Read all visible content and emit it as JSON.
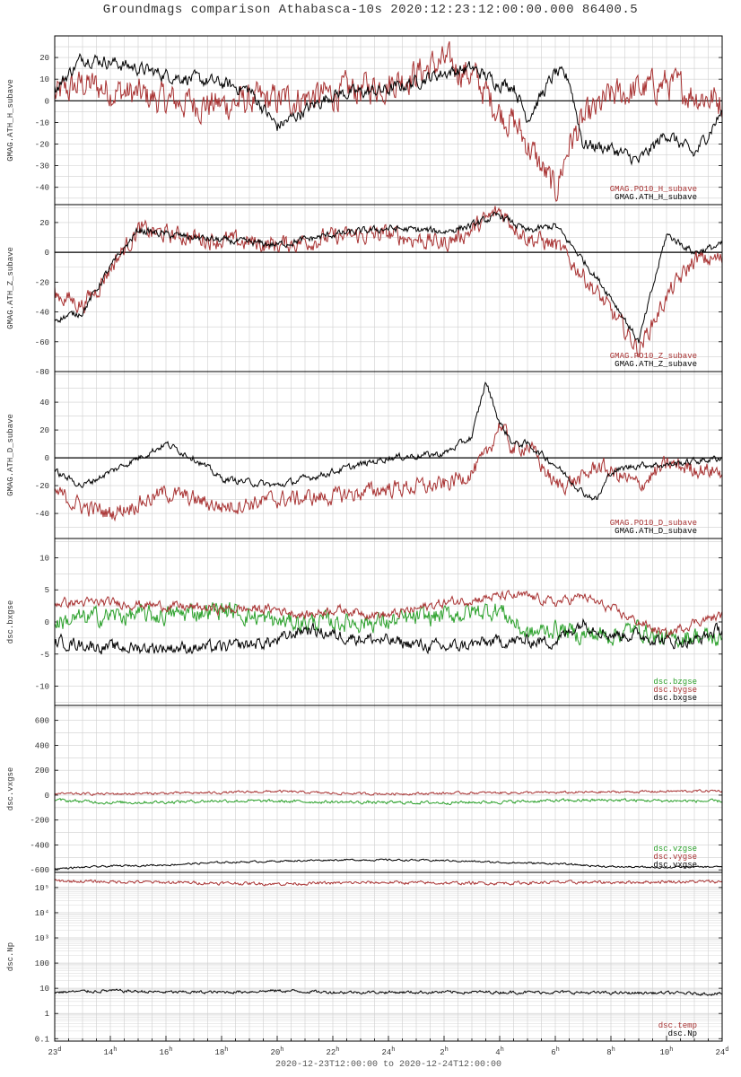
{
  "title": "Groundmags comparison Athabasca-10s 2020:12:23:12:00:00.000 86400.5",
  "footer": "2020-12-23T12:00:00 to 2020-12-24T12:00:00",
  "colors": {
    "black": "#000000",
    "red": "#a83232",
    "green": "#2aa02a",
    "grid": "#cfcfcf"
  },
  "x_ticks": [
    {
      "main": "23",
      "sup": "d"
    },
    {
      "main": "14",
      "sup": "h"
    },
    {
      "main": "16",
      "sup": "h"
    },
    {
      "main": "18",
      "sup": "h"
    },
    {
      "main": "20",
      "sup": "h"
    },
    {
      "main": "22",
      "sup": "h"
    },
    {
      "main": "24",
      "sup": "h"
    },
    {
      "main": "2",
      "sup": "h"
    },
    {
      "main": "4",
      "sup": "h"
    },
    {
      "main": "6",
      "sup": "h"
    },
    {
      "main": "8",
      "sup": "h"
    },
    {
      "main": "10",
      "sup": "h"
    },
    {
      "main": "24",
      "sup": "d"
    }
  ],
  "chart_data": [
    {
      "type": "line",
      "ylabel": "GMAG.ATH_H_subave",
      "ylim": [
        -48,
        30
      ],
      "log": false,
      "yticks": [
        "20",
        "10",
        "0",
        "-10",
        "-20",
        "-30",
        "-40"
      ],
      "ytick_values": [
        20,
        10,
        0,
        -10,
        -20,
        -30,
        -40
      ],
      "zero_line": true,
      "x_hours": [
        0,
        1,
        2,
        4,
        6,
        7,
        8,
        10,
        12,
        14,
        15,
        16,
        16.5,
        17,
        18,
        18.5,
        19,
        20,
        21,
        22,
        23,
        24
      ],
      "series": [
        {
          "name": "GMAG.ATH_H_subave",
          "color": "black",
          "noise": 2.5,
          "values": [
            5,
            20,
            18,
            12,
            8,
            5,
            -12,
            3,
            5,
            13,
            15,
            8,
            7,
            -8,
            13,
            10,
            -20,
            -22,
            -28,
            -15,
            -25,
            -5
          ]
        },
        {
          "name": "GMAG.PO10_H_subave",
          "color": "red",
          "noise": 6,
          "values": [
            2,
            8,
            5,
            0,
            -2,
            0,
            0,
            3,
            8,
            18,
            12,
            -5,
            -10,
            -20,
            -42,
            -20,
            -10,
            2,
            5,
            8,
            3,
            0
          ]
        }
      ]
    },
    {
      "type": "line",
      "ylabel": "GMAG.ATH_Z_subave",
      "ylim": [
        -80,
        32
      ],
      "log": false,
      "yticks": [
        "20",
        "0",
        "-20",
        "-40",
        "-60",
        "-80"
      ],
      "ytick_values": [
        20,
        0,
        -20,
        -40,
        -60,
        -80
      ],
      "zero_line": true,
      "x_hours": [
        0,
        1,
        1.5,
        2,
        3,
        4,
        6,
        8,
        10,
        12,
        14,
        15,
        16,
        17,
        18,
        19,
        20,
        21,
        22,
        23,
        24
      ],
      "series": [
        {
          "name": "GMAG.ATH_Z_subave",
          "color": "black",
          "noise": 2,
          "values": [
            -45,
            -40,
            -25,
            -10,
            15,
            12,
            8,
            5,
            12,
            16,
            14,
            18,
            25,
            14,
            18,
            -5,
            -30,
            -60,
            12,
            0,
            5
          ]
        },
        {
          "name": "GMAG.PO10_Z_subave",
          "color": "red",
          "noise": 5,
          "values": [
            -28,
            -35,
            -25,
            -10,
            15,
            12,
            8,
            5,
            10,
            12,
            6,
            15,
            28,
            10,
            5,
            -15,
            -40,
            -65,
            -30,
            -5,
            -5
          ]
        }
      ]
    },
    {
      "type": "line",
      "ylabel": "GMAG.ATH_D_subave",
      "ylim": [
        -58,
        62
      ],
      "log": false,
      "yticks": [
        "40",
        "20",
        "0",
        "-20",
        "-40"
      ],
      "ytick_values": [
        40,
        20,
        0,
        -20,
        -40
      ],
      "zero_line": true,
      "x_hours": [
        0,
        1,
        2,
        4,
        5,
        6,
        8,
        10,
        12,
        14,
        15,
        15.5,
        16,
        16.5,
        17,
        18,
        19,
        19.5,
        20,
        21,
        22,
        24
      ],
      "series": [
        {
          "name": "GMAG.ATH_D_subave",
          "color": "black",
          "noise": 2,
          "values": [
            -10,
            -20,
            -10,
            10,
            0,
            -15,
            -20,
            -10,
            0,
            3,
            15,
            55,
            25,
            10,
            10,
            -5,
            -25,
            -30,
            -10,
            -5,
            -5,
            0
          ]
        },
        {
          "name": "GMAG.PO10_D_subave",
          "color": "red",
          "noise": 5,
          "values": [
            -25,
            -35,
            -40,
            -25,
            -30,
            -35,
            -30,
            -28,
            -22,
            -20,
            -10,
            0,
            25,
            5,
            10,
            -20,
            -15,
            -5,
            -10,
            -20,
            -5,
            -10
          ]
        }
      ]
    },
    {
      "type": "line",
      "ylabel": "dsc.bxgse",
      "ylim": [
        -13,
        13
      ],
      "log": false,
      "yticks": [
        "10",
        "5",
        "0",
        "-5",
        "-10"
      ],
      "ytick_values": [
        10,
        5,
        0,
        -5,
        -10
      ],
      "zero_line": false,
      "x_hours": [
        0,
        2,
        4,
        6,
        8,
        9,
        10,
        12,
        14,
        16,
        17,
        18,
        19,
        20,
        21,
        22,
        23,
        24
      ],
      "series": [
        {
          "name": "dsc.bxgse",
          "color": "black",
          "noise": 0.8,
          "values": [
            -3,
            -4,
            -4,
            -4,
            -3,
            -1,
            -2,
            -3,
            -4,
            -3,
            -3,
            -3,
            0,
            -2,
            -2,
            -3,
            -3,
            -1
          ]
        },
        {
          "name": "dsc.bygse",
          "color": "red",
          "noise": 0.6,
          "values": [
            3,
            3,
            2.5,
            2,
            2,
            1,
            2,
            1,
            3,
            4,
            4,
            3,
            4,
            2,
            0,
            -2,
            0,
            1
          ]
        },
        {
          "name": "dsc.bzgse",
          "color": "green",
          "noise": 1.2,
          "values": [
            0,
            1,
            1,
            2,
            0,
            0,
            0,
            0,
            1,
            2,
            -2,
            -1,
            -2,
            -2,
            -1,
            -3,
            -2,
            -3
          ]
        }
      ]
    },
    {
      "type": "line",
      "ylabel": "dsc.vxgse",
      "ylim": [
        -620,
        720
      ],
      "log": false,
      "yticks": [
        "600",
        "400",
        "200",
        "0",
        "-200",
        "-400",
        "-600"
      ],
      "ytick_values": [
        600,
        400,
        200,
        0,
        -200,
        -400,
        -600
      ],
      "zero_line": false,
      "x_hours": [
        0,
        2,
        4,
        6,
        8,
        10,
        12,
        14,
        16,
        18,
        20,
        22,
        24
      ],
      "series": [
        {
          "name": "dsc.vxgse",
          "color": "black",
          "noise": 6,
          "values": [
            -590,
            -570,
            -560,
            -540,
            -530,
            -520,
            -520,
            -525,
            -540,
            -550,
            -575,
            -580,
            -575
          ]
        },
        {
          "name": "dsc.vygse",
          "color": "red",
          "noise": 8,
          "values": [
            10,
            10,
            15,
            20,
            30,
            15,
            10,
            15,
            20,
            20,
            25,
            30,
            35
          ]
        },
        {
          "name": "dsc.vzgse",
          "color": "green",
          "noise": 10,
          "values": [
            -40,
            -60,
            -55,
            -45,
            -50,
            -55,
            -60,
            -60,
            -55,
            -45,
            -40,
            -45,
            -50
          ]
        }
      ]
    },
    {
      "type": "line",
      "ylabel": "dsc.Np",
      "ylim": [
        0.08,
        400000
      ],
      "log": true,
      "yticks": [
        "10⁵",
        "10⁴",
        "10³",
        "100",
        "10",
        "1",
        "0.1"
      ],
      "ytick_values": [
        100000,
        10000,
        1000,
        100,
        10,
        1,
        0.1
      ],
      "zero_line": false,
      "x_hours": [
        0,
        2,
        4,
        6,
        8,
        10,
        12,
        14,
        16,
        18,
        20,
        22,
        24
      ],
      "series": [
        {
          "name": "dsc.Np",
          "color": "black",
          "noise": 0.05,
          "values": [
            7,
            8,
            7,
            7,
            8,
            7,
            7,
            7,
            7,
            7,
            6.5,
            6.5,
            6
          ]
        },
        {
          "name": "dsc.temp",
          "color": "red",
          "noise": 0.05,
          "values": [
            180000,
            170000,
            160000,
            150000,
            140000,
            150000,
            160000,
            150000,
            150000,
            160000,
            160000,
            170000,
            170000
          ]
        }
      ]
    }
  ]
}
